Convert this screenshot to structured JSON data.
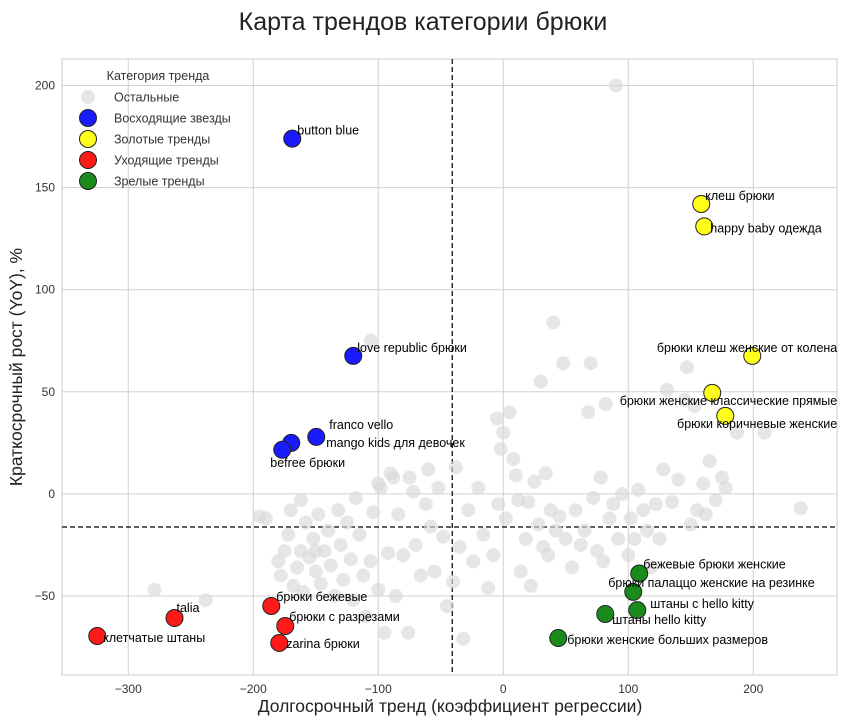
{
  "chart_data": {
    "type": "scatter",
    "title": "Карта трендов категории брюки",
    "xlabel": "Долгосрочный тренд (коэффициент регрессии)",
    "ylabel": "Краткосрочный рост (YoY), %",
    "xlim": [
      -353,
      267
    ],
    "ylim": [
      -88.7,
      213
    ],
    "xticks": [
      -300,
      -200,
      -100,
      0,
      100,
      200
    ],
    "yticks": [
      -50,
      0,
      50,
      100,
      150,
      200
    ],
    "grid": true,
    "reference_lines": {
      "x": -40.8,
      "y": -16.2
    },
    "legend": {
      "title": "Категория тренда",
      "placement": "top-left",
      "entries": [
        {
          "key": "other",
          "label": "Остальные",
          "color": "#d9d9d9"
        },
        {
          "key": "rising",
          "label": "Восходящие звезды",
          "color": "#1a1aff"
        },
        {
          "key": "golden",
          "label": "Золотые тренды",
          "color": "#ffff1a"
        },
        {
          "key": "leaving",
          "label": "Уходящие тренды",
          "color": "#ff1a1a"
        },
        {
          "key": "mature",
          "label": "Зрелые тренды",
          "color": "#1a8a1a"
        }
      ]
    },
    "highlighted": [
      {
        "label": "button blue",
        "x": -168.8,
        "y": 174,
        "category": "rising"
      },
      {
        "label": "love republic брюки",
        "x": -120,
        "y": 67.6,
        "category": "rising"
      },
      {
        "label": "franco vello",
        "x": -149.6,
        "y": 27.9,
        "category": "rising"
      },
      {
        "label": "mango kids для девочек",
        "x": -169.6,
        "y": 25,
        "category": "rising"
      },
      {
        "label": "befree брюки",
        "x": -176.8,
        "y": 21.6,
        "category": "rising"
      },
      {
        "label": "клеш брюки",
        "x": 158.4,
        "y": 142,
        "category": "golden"
      },
      {
        "label": "happy baby одежда",
        "x": 160.8,
        "y": 131,
        "category": "golden"
      },
      {
        "label": "брюки клеш женские от колена",
        "x": 199.2,
        "y": 67.6,
        "category": "golden"
      },
      {
        "label": "брюки женские классические прямые",
        "x": 167.2,
        "y": 49.5,
        "category": "golden"
      },
      {
        "label": "брюки коричневые женские",
        "x": 177.6,
        "y": 38.2,
        "category": "golden"
      },
      {
        "label": "бежевые брюки женские",
        "x": 108.8,
        "y": -39,
        "category": "mature"
      },
      {
        "label": "брюки палаццо женские на резинке",
        "x": 104,
        "y": -48,
        "category": "mature"
      },
      {
        "label": "штаны с hello kitty",
        "x": 107.2,
        "y": -56.9,
        "category": "mature"
      },
      {
        "label": "штаны hello kitty",
        "x": 81.6,
        "y": -58.8,
        "category": "mature"
      },
      {
        "label": "брюки женские больших размеров",
        "x": 44,
        "y": -70.6,
        "category": "mature"
      },
      {
        "label": "клетчатые штаны",
        "x": -324.8,
        "y": -69.6,
        "category": "leaving"
      },
      {
        "label": "talia",
        "x": -263,
        "y": -60.8,
        "category": "leaving"
      },
      {
        "label": "брюки бежевые",
        "x": -185.6,
        "y": -54.9,
        "category": "leaving"
      },
      {
        "label": "брюки с разрезами",
        "x": -174.4,
        "y": -64.7,
        "category": "leaving"
      },
      {
        "label": "zarina брюки",
        "x": -179.2,
        "y": -73,
        "category": "leaving"
      }
    ],
    "others": [
      [
        -279,
        -47
      ],
      [
        -238,
        -52
      ],
      [
        -195,
        -11
      ],
      [
        -180,
        -33
      ],
      [
        -178,
        -40
      ],
      [
        -175,
        -28
      ],
      [
        -172,
        -20
      ],
      [
        -168,
        -45
      ],
      [
        -165,
        -36
      ],
      [
        -162,
        -28
      ],
      [
        -160,
        -48
      ],
      [
        -158,
        -14
      ],
      [
        -155,
        -31
      ],
      [
        -152,
        -22
      ],
      [
        -150,
        -38
      ],
      [
        -148,
        -10
      ],
      [
        -146,
        -44
      ],
      [
        -143,
        -28
      ],
      [
        -140,
        -18
      ],
      [
        -138,
        -35
      ],
      [
        -135,
        -50
      ],
      [
        -132,
        -8
      ],
      [
        -130,
        -25
      ],
      [
        -128,
        -42
      ],
      [
        -125,
        -14
      ],
      [
        -122,
        -32
      ],
      [
        -120,
        -52
      ],
      [
        -118,
        -2
      ],
      [
        -115,
        -20
      ],
      [
        -112,
        -40
      ],
      [
        -110,
        -60
      ],
      [
        -106,
        -33
      ],
      [
        -104,
        -9
      ],
      [
        -100,
        -47
      ],
      [
        -98,
        3
      ],
      [
        -95,
        -68
      ],
      [
        -92,
        -29
      ],
      [
        -88,
        8
      ],
      [
        -86,
        -50
      ],
      [
        -84,
        -10
      ],
      [
        -80,
        -30
      ],
      [
        -76,
        -68
      ],
      [
        -72,
        1
      ],
      [
        -70,
        -25
      ],
      [
        -66,
        -40
      ],
      [
        -62,
        -5
      ],
      [
        -60,
        12
      ],
      [
        -58,
        -16
      ],
      [
        -55,
        -38
      ],
      [
        -52,
        3
      ],
      [
        -48,
        -21
      ],
      [
        -45,
        -55
      ],
      [
        -40,
        -43
      ],
      [
        -38,
        13
      ],
      [
        -35,
        -26
      ],
      [
        -32,
        -71
      ],
      [
        -28,
        -8
      ],
      [
        -24,
        -33
      ],
      [
        -20,
        3
      ],
      [
        -16,
        -20
      ],
      [
        -12,
        -46
      ],
      [
        -8,
        -30
      ],
      [
        -5,
        37
      ],
      [
        -4,
        -5
      ],
      [
        -2,
        22
      ],
      [
        0,
        30
      ],
      [
        2,
        -12
      ],
      [
        5,
        40
      ],
      [
        8,
        17
      ],
      [
        10,
        9
      ],
      [
        12,
        -3
      ],
      [
        14,
        -38
      ],
      [
        18,
        -22
      ],
      [
        20,
        -4
      ],
      [
        22,
        -45
      ],
      [
        25,
        6
      ],
      [
        28,
        -15
      ],
      [
        30,
        55
      ],
      [
        32,
        -26
      ],
      [
        34,
        10
      ],
      [
        36,
        -30
      ],
      [
        38,
        -8
      ],
      [
        40,
        84
      ],
      [
        42,
        -18
      ],
      [
        45,
        -11
      ],
      [
        48,
        64
      ],
      [
        50,
        -22
      ],
      [
        55,
        -36
      ],
      [
        58,
        -8
      ],
      [
        62,
        -25
      ],
      [
        65,
        -18
      ],
      [
        68,
        40
      ],
      [
        70,
        64
      ],
      [
        72,
        -2
      ],
      [
        75,
        -28
      ],
      [
        78,
        8
      ],
      [
        80,
        -33
      ],
      [
        82,
        44
      ],
      [
        85,
        -12
      ],
      [
        88,
        -5
      ],
      [
        90,
        200
      ],
      [
        92,
        -22
      ],
      [
        95,
        0
      ],
      [
        100,
        -30
      ],
      [
        102,
        -12
      ],
      [
        105,
        -22
      ],
      [
        108,
        2
      ],
      [
        112,
        -8
      ],
      [
        115,
        -18
      ],
      [
        118,
        -36
      ],
      [
        122,
        -5
      ],
      [
        125,
        -22
      ],
      [
        128,
        12
      ],
      [
        131,
        51
      ],
      [
        135,
        -4
      ],
      [
        140,
        7
      ],
      [
        145,
        46
      ],
      [
        147,
        62
      ],
      [
        150,
        -15
      ],
      [
        153,
        43
      ],
      [
        155,
        -8
      ],
      [
        160,
        5
      ],
      [
        162,
        -10
      ],
      [
        165,
        16
      ],
      [
        170,
        -3
      ],
      [
        175,
        8
      ],
      [
        178,
        3
      ],
      [
        187,
        30
      ],
      [
        209,
        30
      ],
      [
        238,
        -7
      ],
      [
        -106,
        75
      ],
      [
        -170,
        -8
      ],
      [
        -150,
        -28
      ],
      [
        -190,
        -12
      ],
      [
        -162,
        -3
      ],
      [
        -100,
        5
      ],
      [
        -75,
        8
      ],
      [
        -90,
        10
      ]
    ]
  }
}
